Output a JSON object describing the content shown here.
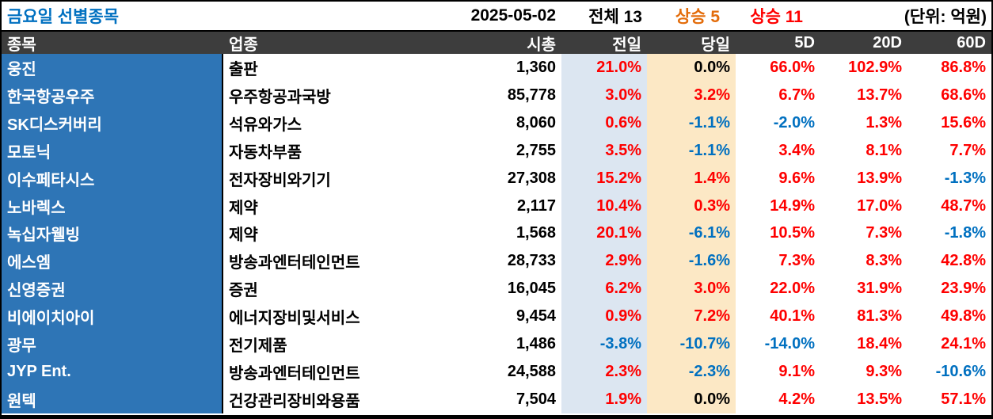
{
  "title_bar": {
    "title": "금요일 선별종목",
    "date": "2025-05-02",
    "total_label": "전체 13",
    "up_today_label": "상승 5",
    "up_5d_label": "상승 11",
    "unit_label": "(단위: 억원)"
  },
  "colors": {
    "title_blue": "#0070c0",
    "up_today_orange": "#e36c0a",
    "up_5d_red": "#fe0000",
    "positive": "#fe0000",
    "negative": "#0070c0",
    "zero": "#000000",
    "header_bg": "#3d3d3d",
    "name_col_bg": "#2e75b6",
    "prev_col_bg": "#dce6f1",
    "today_col_bg": "#fce8c5"
  },
  "table": {
    "columns": [
      "종목",
      "업종",
      "시총",
      "전일",
      "당일",
      "5D",
      "20D",
      "60D"
    ],
    "rows": [
      [
        "웅진",
        "출판",
        "1,360",
        "21.0%",
        "0.0%",
        "66.0%",
        "102.9%",
        "86.8%"
      ],
      [
        "한국항공우주",
        "우주항공과국방",
        "85,778",
        "3.0%",
        "3.2%",
        "6.7%",
        "13.7%",
        "68.6%"
      ],
      [
        "SK디스커버리",
        "석유와가스",
        "8,060",
        "0.6%",
        "-1.1%",
        "-2.0%",
        "1.3%",
        "15.6%"
      ],
      [
        "모토닉",
        "자동차부품",
        "2,755",
        "3.5%",
        "-1.1%",
        "3.4%",
        "8.1%",
        "7.7%"
      ],
      [
        "이수페타시스",
        "전자장비와기기",
        "27,308",
        "15.2%",
        "1.4%",
        "9.6%",
        "13.9%",
        "-1.3%"
      ],
      [
        "노바렉스",
        "제약",
        "2,117",
        "10.4%",
        "0.3%",
        "14.9%",
        "17.0%",
        "48.7%"
      ],
      [
        "녹십자웰빙",
        "제약",
        "1,568",
        "20.1%",
        "-6.1%",
        "10.5%",
        "7.3%",
        "-1.8%"
      ],
      [
        "에스엠",
        "방송과엔터테인먼트",
        "28,733",
        "2.9%",
        "-1.6%",
        "7.3%",
        "8.3%",
        "42.8%"
      ],
      [
        "신영증권",
        "증권",
        "16,045",
        "6.2%",
        "3.0%",
        "22.0%",
        "31.9%",
        "23.9%"
      ],
      [
        "비에이치아이",
        "에너지장비및서비스",
        "9,454",
        "0.9%",
        "7.2%",
        "40.1%",
        "81.3%",
        "49.8%"
      ],
      [
        "광무",
        "전기제품",
        "1,486",
        "-3.8%",
        "-10.7%",
        "-14.0%",
        "18.4%",
        "24.1%"
      ],
      [
        "JYP Ent.",
        "방송과엔터테인먼트",
        "24,588",
        "2.3%",
        "-2.3%",
        "9.1%",
        "9.3%",
        "-10.6%"
      ],
      [
        "원텍",
        "건강관리장비와용품",
        "7,504",
        "1.9%",
        "0.0%",
        "4.2%",
        "13.5%",
        "57.1%"
      ]
    ]
  }
}
